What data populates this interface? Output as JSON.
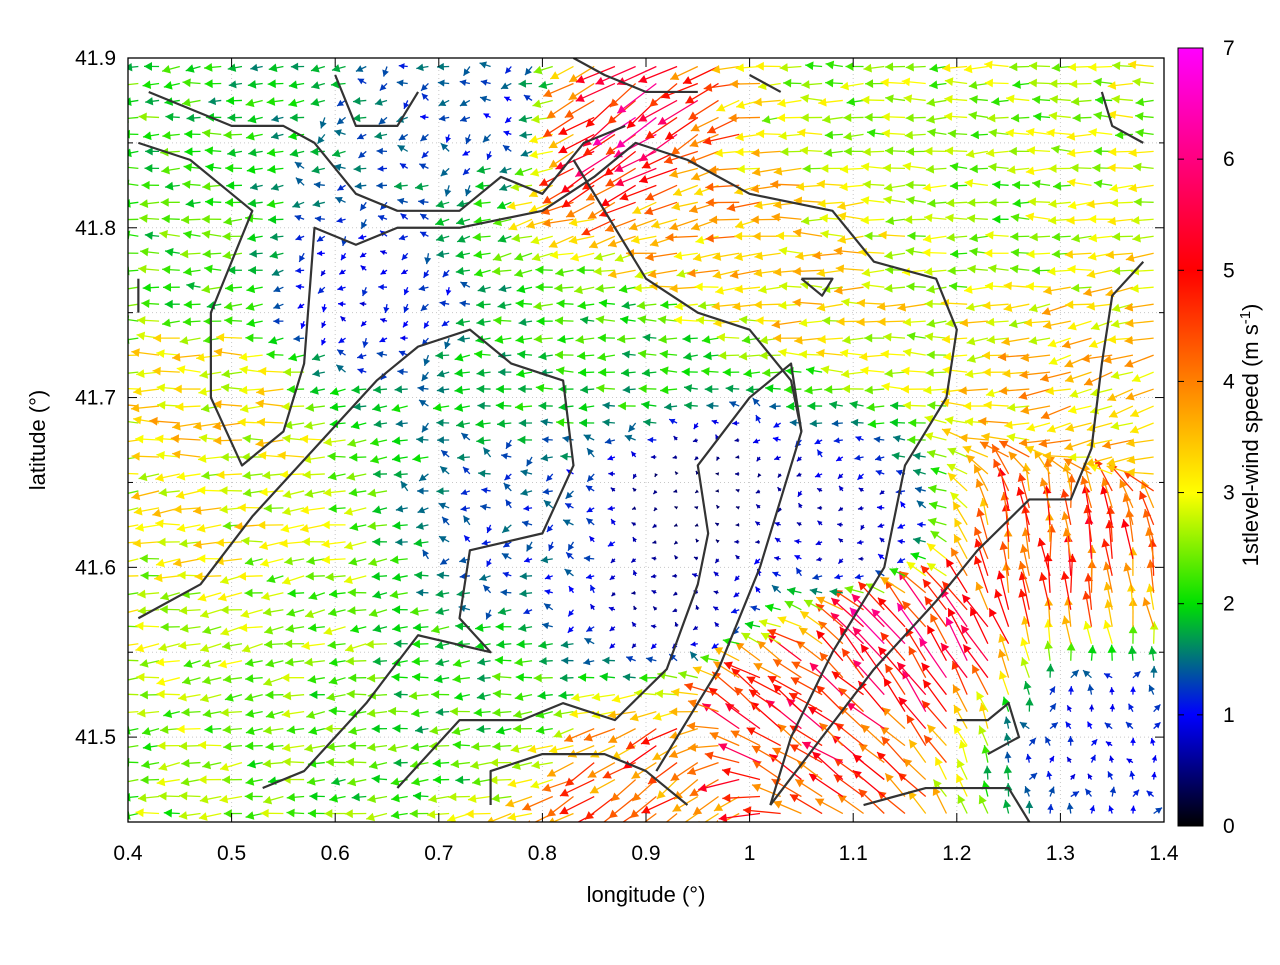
{
  "chart_data": {
    "type": "vector-field",
    "xlabel": "longitude (°)",
    "ylabel": "latitude (°)",
    "xlim": [
      0.4,
      1.4
    ],
    "ylim": [
      41.45,
      41.9
    ],
    "xticks": [
      "0.4",
      "0.5",
      "0.6",
      "0.7",
      "0.8",
      "0.9",
      "1",
      "1.1",
      "1.2",
      "1.3",
      "1.4"
    ],
    "yticks": [
      "41.5",
      "41.6",
      "41.7",
      "41.8",
      "41.9"
    ],
    "grid": true,
    "colorbar": {
      "label": "1stlevel-wind speed (m s",
      "label_sup": "-1",
      "label_end": ")",
      "range": [
        0,
        7
      ],
      "ticks": [
        "0",
        "1",
        "2",
        "3",
        "4",
        "5",
        "6",
        "7"
      ],
      "colormap": [
        "#000000",
        "#0000ff",
        "#00e000",
        "#ffff00",
        "#ff8000",
        "#ff0000",
        "#ff00ff"
      ]
    },
    "vector_grid": {
      "dlon": 0.02,
      "dlat": 0.01,
      "field_centers": [
        {
          "lon": 0.48,
          "lat": 41.7,
          "speed": 3.2,
          "dir_deg": 180
        },
        {
          "lon": 0.45,
          "lat": 41.78,
          "speed": 2.2,
          "dir_deg": 180
        },
        {
          "lon": 0.62,
          "lat": 41.76,
          "speed": 1.0,
          "dir_deg": 200
        },
        {
          "lon": 0.78,
          "lat": 41.62,
          "speed": 1.3,
          "dir_deg": 185
        },
        {
          "lon": 0.93,
          "lat": 41.58,
          "speed": 0.6,
          "dir_deg": 170
        },
        {
          "lon": 0.95,
          "lat": 41.64,
          "speed": 0.4,
          "dir_deg": 180
        },
        {
          "lon": 0.86,
          "lat": 41.72,
          "speed": 2.0,
          "dir_deg": 180
        },
        {
          "lon": 0.72,
          "lat": 41.52,
          "speed": 2.1,
          "dir_deg": 185
        },
        {
          "lon": 0.89,
          "lat": 41.86,
          "speed": 5.4,
          "dir_deg": 215
        },
        {
          "lon": 0.98,
          "lat": 41.81,
          "speed": 3.6,
          "dir_deg": 190
        },
        {
          "lon": 1.08,
          "lat": 41.78,
          "speed": 3.2,
          "dir_deg": 180
        },
        {
          "lon": 1.1,
          "lat": 41.88,
          "speed": 2.6,
          "dir_deg": 180
        },
        {
          "lon": 1.35,
          "lat": 41.7,
          "speed": 3.4,
          "dir_deg": 195
        },
        {
          "lon": 1.3,
          "lat": 41.61,
          "speed": 4.6,
          "dir_deg": 95
        },
        {
          "lon": 1.16,
          "lat": 41.55,
          "speed": 5.3,
          "dir_deg": 125
        },
        {
          "lon": 1.04,
          "lat": 41.51,
          "speed": 5.0,
          "dir_deg": 145
        },
        {
          "lon": 0.92,
          "lat": 41.47,
          "speed": 4.3,
          "dir_deg": 215
        },
        {
          "lon": 1.33,
          "lat": 41.5,
          "speed": 1.0,
          "dir_deg": 90
        },
        {
          "lon": 1.1,
          "lat": 41.62,
          "speed": 0.7,
          "dir_deg": 180
        },
        {
          "lon": 0.75,
          "lat": 41.87,
          "speed": 1.2,
          "dir_deg": 190
        },
        {
          "lon": 0.55,
          "lat": 41.58,
          "speed": 2.5,
          "dir_deg": 190
        },
        {
          "lon": 0.5,
          "lat": 41.62,
          "speed": 3.0,
          "dir_deg": 185
        },
        {
          "lon": 1.2,
          "lat": 41.82,
          "speed": 2.5,
          "dir_deg": 180
        }
      ]
    },
    "coastline_contours": [
      [
        [
          0.42,
          41.88
        ],
        [
          0.5,
          41.86
        ],
        [
          0.55,
          41.86
        ],
        [
          0.58,
          41.85
        ],
        [
          0.62,
          41.82
        ],
        [
          0.66,
          41.81
        ],
        [
          0.72,
          41.81
        ],
        [
          0.76,
          41.83
        ],
        [
          0.8,
          41.82
        ],
        [
          0.84,
          41.85
        ],
        [
          0.88,
          41.86
        ]
      ],
      [
        [
          0.41,
          41.85
        ],
        [
          0.46,
          41.84
        ],
        [
          0.5,
          41.82
        ],
        [
          0.52,
          41.81
        ],
        [
          0.5,
          41.78
        ],
        [
          0.48,
          41.75
        ],
        [
          0.48,
          41.7
        ],
        [
          0.51,
          41.66
        ],
        [
          0.55,
          41.68
        ],
        [
          0.57,
          41.72
        ],
        [
          0.58,
          41.8
        ],
        [
          0.62,
          41.79
        ],
        [
          0.66,
          41.8
        ],
        [
          0.72,
          41.8
        ],
        [
          0.8,
          41.81
        ],
        [
          0.85,
          41.83
        ],
        [
          0.89,
          41.85
        ],
        [
          0.94,
          41.84
        ],
        [
          1.0,
          41.82
        ],
        [
          1.08,
          41.81
        ],
        [
          1.12,
          41.78
        ],
        [
          1.18,
          41.77
        ],
        [
          1.2,
          41.74
        ],
        [
          1.19,
          41.7
        ],
        [
          1.15,
          41.66
        ],
        [
          1.13,
          41.6
        ],
        [
          1.08,
          41.55
        ],
        [
          1.04,
          41.5
        ],
        [
          1.02,
          41.46
        ]
      ],
      [
        [
          0.41,
          41.57
        ],
        [
          0.47,
          41.59
        ],
        [
          0.52,
          41.63
        ],
        [
          0.58,
          41.67
        ],
        [
          0.64,
          41.71
        ],
        [
          0.68,
          41.73
        ],
        [
          0.73,
          41.74
        ],
        [
          0.77,
          41.72
        ],
        [
          0.82,
          41.71
        ],
        [
          0.83,
          41.66
        ],
        [
          0.8,
          41.62
        ],
        [
          0.73,
          41.61
        ],
        [
          0.72,
          41.57
        ],
        [
          0.75,
          41.55
        ],
        [
          0.68,
          41.56
        ],
        [
          0.63,
          41.52
        ],
        [
          0.57,
          41.48
        ],
        [
          0.53,
          41.47
        ]
      ],
      [
        [
          0.66,
          41.47
        ],
        [
          0.72,
          41.51
        ],
        [
          0.78,
          41.51
        ],
        [
          0.82,
          41.52
        ],
        [
          0.87,
          41.51
        ],
        [
          0.92,
          41.54
        ],
        [
          0.95,
          41.59
        ],
        [
          0.96,
          41.62
        ],
        [
          0.95,
          41.66
        ],
        [
          1.0,
          41.7
        ],
        [
          1.04,
          41.72
        ],
        [
          1.05,
          41.68
        ],
        [
          1.01,
          41.6
        ],
        [
          0.97,
          41.54
        ],
        [
          0.91,
          41.48
        ]
      ],
      [
        [
          0.75,
          41.46
        ],
        [
          0.75,
          41.48
        ],
        [
          0.8,
          41.49
        ],
        [
          0.86,
          41.49
        ],
        [
          0.9,
          41.48
        ],
        [
          0.94,
          41.46
        ]
      ],
      [
        [
          0.83,
          41.84
        ],
        [
          0.86,
          41.81
        ],
        [
          0.88,
          41.79
        ],
        [
          0.9,
          41.77
        ],
        [
          0.95,
          41.75
        ],
        [
          1.0,
          41.74
        ],
        [
          1.04,
          41.71
        ],
        [
          1.05,
          41.68
        ]
      ],
      [
        [
          1.02,
          41.46
        ],
        [
          1.07,
          41.5
        ],
        [
          1.12,
          41.54
        ],
        [
          1.18,
          41.58
        ],
        [
          1.22,
          41.61
        ],
        [
          1.27,
          41.64
        ],
        [
          1.31,
          41.64
        ],
        [
          1.33,
          41.67
        ],
        [
          1.34,
          41.72
        ],
        [
          1.35,
          41.76
        ],
        [
          1.38,
          41.78
        ]
      ],
      [
        [
          1.11,
          41.46
        ],
        [
          1.17,
          41.47
        ],
        [
          1.22,
          41.47
        ],
        [
          1.25,
          41.47
        ],
        [
          1.27,
          41.45
        ]
      ],
      [
        [
          0.6,
          41.89
        ],
        [
          0.62,
          41.86
        ],
        [
          0.66,
          41.86
        ],
        [
          0.68,
          41.88
        ]
      ],
      [
        [
          1.34,
          41.88
        ],
        [
          1.35,
          41.86
        ],
        [
          1.38,
          41.85
        ]
      ],
      [
        [
          0.41,
          41.77
        ],
        [
          0.41,
          41.75
        ]
      ],
      [
        [
          1.2,
          41.51
        ],
        [
          1.23,
          41.51
        ],
        [
          1.25,
          41.52
        ],
        [
          1.26,
          41.5
        ],
        [
          1.23,
          41.49
        ]
      ],
      [
        [
          1.05,
          41.77
        ],
        [
          1.07,
          41.76
        ],
        [
          1.08,
          41.77
        ],
        [
          1.05,
          41.77
        ]
      ],
      [
        [
          0.83,
          41.9
        ],
        [
          0.86,
          41.89
        ],
        [
          0.9,
          41.88
        ],
        [
          0.95,
          41.88
        ]
      ],
      [
        [
          1.0,
          41.89
        ],
        [
          1.03,
          41.88
        ]
      ]
    ]
  }
}
